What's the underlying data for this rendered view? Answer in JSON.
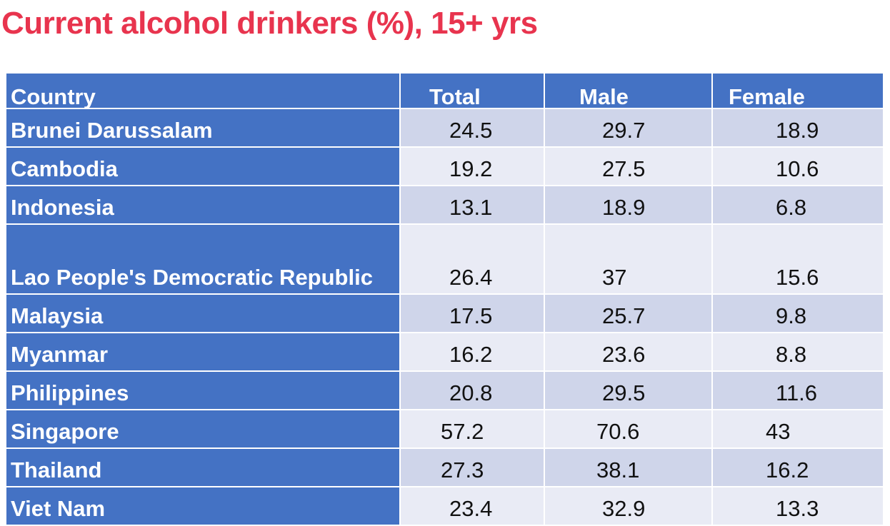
{
  "title": "Current alcohol drinkers (%), 15+ yrs",
  "table": {
    "headers": [
      "Country",
      "Total",
      "Male",
      "Female"
    ],
    "rows": [
      {
        "country": "Brunei Darussalam",
        "total": "24.5",
        "male": "29.7",
        "female": "18.9"
      },
      {
        "country": "Cambodia",
        "total": "19.2",
        "male": "27.5",
        "female": "10.6"
      },
      {
        "country": "Indonesia",
        "total": "13.1",
        "male": "18.9",
        "female": "6.8"
      },
      {
        "country": "Lao People's Democratic Republic",
        "total": "26.4",
        "male": "37",
        "female": "15.6"
      },
      {
        "country": "Malaysia",
        "total": "17.5",
        "male": "25.7",
        "female": "9.8"
      },
      {
        "country": "Myanmar",
        "total": "16.2",
        "male": "23.6",
        "female": "8.8"
      },
      {
        "country": "Philippines",
        "total": "20.8",
        "male": "29.5",
        "female": "11.6"
      },
      {
        "country": "Singapore",
        "total": "57.2",
        "male": "70.6",
        "female": "43"
      },
      {
        "country": "Thailand",
        "total": "27.3",
        "male": "38.1",
        "female": "16.2"
      },
      {
        "country": "Viet Nam",
        "total": "23.4",
        "male": "32.9",
        "female": "13.3"
      }
    ]
  },
  "colors": {
    "title": "#e8344e",
    "header_bg": "#4472c4",
    "row_dark": "#cfd5ea",
    "row_light": "#e9ebf5"
  }
}
